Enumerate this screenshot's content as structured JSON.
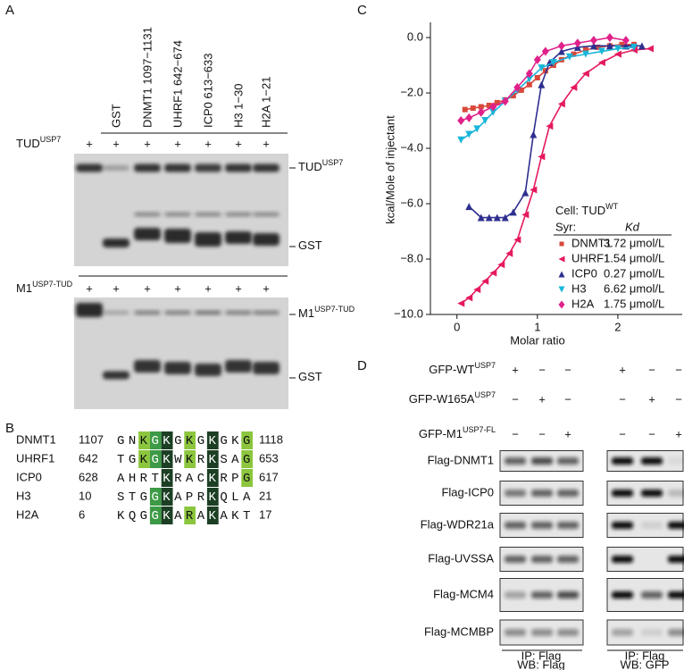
{
  "panel_a": {
    "label": "A",
    "lanes": [
      "GST",
      "DNMT1 1097−1131",
      "UHRF1 642−674",
      "ICP0 613−633",
      "H3 1−30",
      "H2A 1−21"
    ],
    "top_row": {
      "protein": {
        "text": "TUD",
        "sup": "USP7"
      },
      "signs": [
        "+",
        "+",
        "+",
        "+",
        "+",
        "+",
        "+"
      ]
    },
    "top_bands": [
      {
        "text": "TUD",
        "sup": "USP7"
      },
      {
        "text": "GST"
      }
    ],
    "bottom_row": {
      "protein": {
        "text": "M1",
        "sup": "USP7-TUD"
      },
      "signs": [
        "+",
        "+",
        "+",
        "+",
        "+",
        "+",
        "+"
      ]
    },
    "bottom_bands": [
      {
        "text": "M1",
        "sup": "USP7-TUD"
      },
      {
        "text": "GST"
      }
    ]
  },
  "panel_b": {
    "label": "B",
    "rows": [
      {
        "name": "DNMT1",
        "start": "1107",
        "sequence": "GNKGKGKGKGKG",
        "end": "1118"
      },
      {
        "name": "UHRF1",
        "start": "642",
        "sequence": "TGKGKWKRKSAG",
        "end": "653"
      },
      {
        "name": "ICP0",
        "start": "628",
        "sequence": "AHRTKRACKRPG",
        "end": "617"
      },
      {
        "name": "H3",
        "start": "10",
        "sequence": "STGGKAPRKQLA",
        "end": "21"
      },
      {
        "name": "H2A",
        "start": "6",
        "sequence": "KQGGKARAKAKT",
        "end": "17"
      }
    ]
  },
  "chart_data": {
    "type": "scatter",
    "panel_label": "C",
    "x_label": "Molar ratio",
    "y_label": "kcal/Mole of injectant",
    "xlim": [
      -0.33,
      2.8
    ],
    "ylim": [
      -10,
      0.55
    ],
    "xticks": [
      0,
      1,
      2
    ],
    "yticks": [
      {
        "value": 0,
        "label": "0.0"
      },
      {
        "value": -2,
        "label": "−2.0"
      },
      {
        "value": -4,
        "label": "−4.0"
      },
      {
        "value": -6,
        "label": "−6.0"
      },
      {
        "value": -8,
        "label": "−8.0"
      },
      {
        "value": -10,
        "label": "−10.0"
      }
    ],
    "legend_title": {
      "text": "Cell: TUD",
      "sup": "WT"
    },
    "legend_header": [
      "Syr:",
      "Kd"
    ],
    "series": [
      {
        "name": "DNMT1",
        "color": "#d9483b",
        "marker": "square",
        "kd": "3.72 μmol/L",
        "x": [
          0.1,
          0.2,
          0.3,
          0.4,
          0.5,
          0.6,
          0.7,
          0.8,
          0.9,
          1.0,
          1.1,
          1.2,
          1.3,
          1.45,
          1.6,
          1.75,
          1.9,
          2.05,
          2.2
        ],
        "values": [
          -2.6,
          -2.55,
          -2.5,
          -2.45,
          -2.35,
          -2.25,
          -2.1,
          -1.9,
          -1.7,
          -1.45,
          -1.2,
          -1.0,
          -0.8,
          -0.6,
          -0.45,
          -0.35,
          -0.3,
          -0.25,
          -0.25
        ]
      },
      {
        "name": "UHRF1",
        "color": "#e5195f",
        "marker": "triangle-left",
        "kd": "1.54 μmol/L",
        "x": [
          0.05,
          0.15,
          0.25,
          0.35,
          0.45,
          0.55,
          0.65,
          0.75,
          0.85,
          0.95,
          1.05,
          1.15,
          1.3,
          1.45,
          1.6,
          1.8,
          2.0,
          2.2,
          2.4
        ],
        "values": [
          -9.6,
          -9.4,
          -9.1,
          -8.8,
          -8.5,
          -8.2,
          -7.8,
          -7.3,
          -6.4,
          -5.5,
          -4.3,
          -3.2,
          -2.4,
          -1.8,
          -1.3,
          -0.9,
          -0.6,
          -0.45,
          -0.4
        ]
      },
      {
        "name": "ICP0",
        "color": "#2e2f8f",
        "marker": "triangle-up",
        "kd": "0.27 μmol/L",
        "x": [
          0.15,
          0.3,
          0.4,
          0.5,
          0.6,
          0.7,
          0.85,
          0.95,
          1.05,
          1.15,
          1.3,
          1.5,
          1.7,
          1.9,
          2.1,
          2.3
        ],
        "values": [
          -6.1,
          -6.5,
          -6.5,
          -6.5,
          -6.5,
          -6.3,
          -5.6,
          -3.5,
          -1.7,
          -0.9,
          -0.5,
          -0.35,
          -0.3,
          -0.3,
          -0.3,
          -0.3
        ]
      },
      {
        "name": "H3",
        "color": "#19b5d9",
        "marker": "triangle-down",
        "kd": "6.62 μmol/L",
        "x": [
          0.05,
          0.15,
          0.25,
          0.35,
          0.45,
          0.6,
          0.75,
          0.9,
          1.05,
          1.2,
          1.4,
          1.6,
          1.8,
          2.0,
          2.2
        ],
        "values": [
          -3.7,
          -3.5,
          -3.3,
          -3.0,
          -2.7,
          -2.3,
          -1.9,
          -1.5,
          -1.1,
          -0.9,
          -0.7,
          -0.6,
          -0.5,
          -0.4,
          -0.35
        ]
      },
      {
        "name": "H2A",
        "color": "#e0218a",
        "marker": "diamond",
        "kd": "1.75 μmol/L",
        "x": [
          0.05,
          0.15,
          0.3,
          0.45,
          0.6,
          0.75,
          0.9,
          1.0,
          1.1,
          1.3,
          1.5,
          1.7,
          1.9,
          2.1
        ],
        "values": [
          -3.0,
          -2.9,
          -2.7,
          -2.5,
          -2.3,
          -1.8,
          -1.3,
          -0.8,
          -0.5,
          -0.3,
          -0.2,
          -0.1,
          0.0,
          -0.1
        ]
      }
    ]
  },
  "panel_d": {
    "label": "D",
    "constructs": [
      {
        "label": {
          "text": "GFP-WT",
          "sup": "USP7"
        },
        "signs": [
          "+",
          "−",
          "−",
          "+",
          "−",
          "−"
        ]
      },
      {
        "label": {
          "text": "GFP-W165A",
          "sup": "USP7"
        },
        "signs": [
          "−",
          "+",
          "−",
          "−",
          "+",
          "−"
        ]
      },
      {
        "label": {
          "text": "GFP-M1",
          "sup": "USP7-FL"
        },
        "signs": [
          "−",
          "−",
          "+",
          "−",
          "−",
          "+"
        ]
      }
    ],
    "blots": [
      "Flag-DNMT1",
      "Flag-ICP0",
      "Flag-WDR21a",
      "Flag-UVSSA",
      "Flag-MCM4",
      "Flag-MCMBP"
    ],
    "footers": [
      {
        "ip": "IP: Flag",
        "wb": "WB: Flag"
      },
      {
        "ip": "IP: Flag",
        "wb": "WB: GFP"
      }
    ]
  }
}
